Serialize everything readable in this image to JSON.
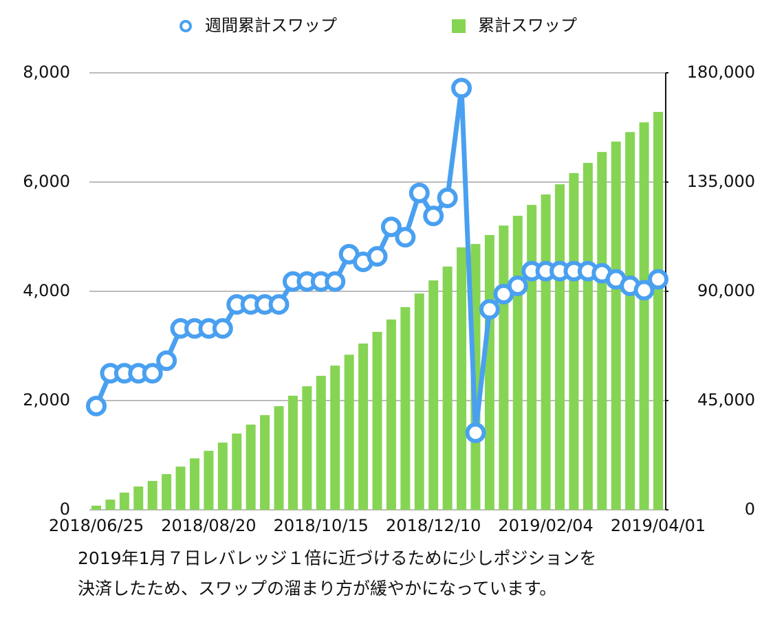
{
  "chart_data": {
    "type": "combo",
    "categories": [
      "2018/06/25",
      null,
      null,
      null,
      null,
      null,
      null,
      null,
      "2018/08/20",
      null,
      null,
      null,
      null,
      null,
      null,
      null,
      "2018/10/15",
      null,
      null,
      null,
      null,
      null,
      null,
      null,
      "2018/12/10",
      null,
      null,
      null,
      null,
      null,
      null,
      null,
      "2019/02/04",
      null,
      null,
      null,
      null,
      null,
      null,
      null,
      "2019/04/01"
    ],
    "series": [
      {
        "name": "週間累計スワップ",
        "type": "line",
        "axis": "y",
        "color": "#4aa0f0",
        "values": [
          1900,
          2500,
          2500,
          2500,
          2500,
          2730,
          3320,
          3320,
          3320,
          3320,
          3760,
          3760,
          3760,
          3760,
          4180,
          4180,
          4180,
          4180,
          4680,
          4540,
          4640,
          5180,
          4990,
          5800,
          5380,
          5710,
          7720,
          1410,
          3670,
          3950,
          4100,
          4370,
          4370,
          4370,
          4370,
          4370,
          4330,
          4220,
          4100,
          4020,
          4220
        ]
      },
      {
        "name": "累計スワップ",
        "type": "bar",
        "axis": "y2",
        "color": "#86d454",
        "values": [
          1700,
          4200,
          7100,
          9600,
          11900,
          14700,
          17800,
          21200,
          24300,
          27700,
          31400,
          35100,
          39000,
          42700,
          47000,
          50900,
          55200,
          59400,
          63900,
          68500,
          73300,
          78400,
          83500,
          89100,
          94500,
          100200,
          108100,
          109500,
          113200,
          117100,
          121100,
          125600,
          129900,
          134100,
          138700,
          142900,
          147400,
          151700,
          155600,
          159600,
          163900
        ]
      }
    ],
    "ylim": [
      0,
      8000
    ],
    "yticks": [
      0,
      {
        "value": 2000,
        "label": "2,000"
      },
      {
        "value": 4000,
        "label": "4,000"
      },
      {
        "value": 6000,
        "label": "6,000"
      },
      {
        "value": 8000,
        "label": "8,000"
      }
    ],
    "y2lim": [
      0,
      180000
    ],
    "y2ticks": [
      0,
      {
        "value": 45000,
        "label": "45,000"
      },
      {
        "value": 90000,
        "label": "90,000"
      },
      {
        "value": 135000,
        "label": "135,000"
      },
      {
        "value": 180000,
        "label": "180,000"
      }
    ],
    "grid": true,
    "legend": "top",
    "annotations": [
      "2019年1月７日レバレッジ１倍に近づけるために少しポジションを",
      "決済したため、スワップの溜まり方が緩やかになっています。"
    ]
  }
}
